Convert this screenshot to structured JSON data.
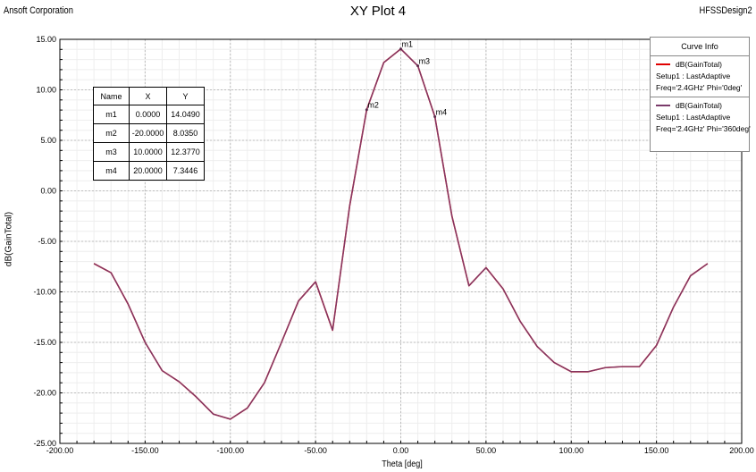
{
  "header": {
    "left": "Ansoft Corporation",
    "title": "XY Plot 4",
    "right": "HFSSDesign2"
  },
  "legend": {
    "title": "Curve Info",
    "entries": [
      {
        "name": "dB(GainTotal)",
        "setup": "Setup1 : LastAdaptive",
        "freq": "Freq='2.4GHz' Phi='0deg'",
        "color": "#e00000"
      },
      {
        "name": "dB(GainTotal)",
        "setup": "Setup1 : LastAdaptive",
        "freq": "Freq='2.4GHz' Phi='360deg'",
        "color": "#7a3a6a"
      }
    ]
  },
  "marker_table": {
    "headers": [
      "Name",
      "X",
      "Y"
    ],
    "rows": [
      [
        "m1",
        "0.0000",
        "14.0490"
      ],
      [
        "m2",
        "-20.0000",
        "8.0350"
      ],
      [
        "m3",
        "10.0000",
        "12.3770"
      ],
      [
        "m4",
        "20.0000",
        "7.3446"
      ]
    ]
  },
  "chart_data": {
    "type": "line",
    "title": "XY Plot 4",
    "xlabel": "Theta [deg]",
    "ylabel": "dB(GainTotal)",
    "xlim": [
      -200,
      200
    ],
    "ylim": [
      -25,
      15
    ],
    "x_ticks": [
      -200,
      -150,
      -100,
      -50,
      0,
      50,
      100,
      150,
      200
    ],
    "x_tick_labels": [
      "-200.00",
      "-150.00",
      "-100.00",
      "-50.00",
      "0.00",
      "50.00",
      "100.00",
      "150.00",
      "200.00"
    ],
    "y_ticks": [
      15,
      10,
      5,
      0,
      -5,
      -10,
      -15,
      -20,
      -25
    ],
    "y_tick_labels": [
      "15.00",
      "10.00",
      "5.00",
      "0.00",
      "-5.00",
      "-10.00",
      "-15.00",
      "-20.00",
      "-25.00"
    ],
    "grid": true,
    "legend_position": "top-right",
    "x": [
      -180,
      -170,
      -160,
      -150,
      -140,
      -130,
      -120,
      -110,
      -100,
      -90,
      -80,
      -70,
      -60,
      -50,
      -40,
      -30,
      -20,
      -10,
      0,
      10,
      20,
      30,
      40,
      50,
      60,
      70,
      80,
      90,
      100,
      110,
      120,
      130,
      140,
      150,
      160,
      170,
      180
    ],
    "series": [
      {
        "name": "dB(GainTotal) Setup1 : LastAdaptive Freq='2.4GHz' Phi='0deg'",
        "color": "#e00000",
        "values": [
          -7.2,
          -8.1,
          -11.2,
          -15.0,
          -17.8,
          -18.9,
          -20.4,
          -22.1,
          -22.6,
          -21.5,
          -19.0,
          -15.0,
          -10.9,
          -9.0,
          -13.8,
          -1.5,
          8.035,
          12.7,
          14.049,
          12.377,
          7.3446,
          -2.5,
          -9.4,
          -7.6,
          -9.7,
          -12.9,
          -15.4,
          -17.0,
          -17.9,
          -17.9,
          -17.5,
          -17.4,
          -17.4,
          -15.3,
          -11.5,
          -8.4,
          -7.2
        ]
      },
      {
        "name": "dB(GainTotal) Setup1 : LastAdaptive Freq='2.4GHz' Phi='360deg'",
        "color": "#7a3a6a",
        "values": [
          -7.2,
          -8.1,
          -11.2,
          -15.0,
          -17.8,
          -18.9,
          -20.4,
          -22.1,
          -22.6,
          -21.5,
          -19.0,
          -15.0,
          -10.9,
          -9.0,
          -13.8,
          -1.5,
          8.035,
          12.7,
          14.049,
          12.377,
          7.3446,
          -2.5,
          -9.4,
          -7.6,
          -9.7,
          -12.9,
          -15.4,
          -17.0,
          -17.9,
          -17.9,
          -17.5,
          -17.4,
          -17.4,
          -15.3,
          -11.5,
          -8.4,
          -7.2
        ]
      }
    ],
    "markers": [
      {
        "name": "m1",
        "x": 0,
        "y": 14.049
      },
      {
        "name": "m2",
        "x": -20,
        "y": 8.035
      },
      {
        "name": "m3",
        "x": 10,
        "y": 12.377
      },
      {
        "name": "m4",
        "x": 20,
        "y": 7.3446
      }
    ]
  }
}
